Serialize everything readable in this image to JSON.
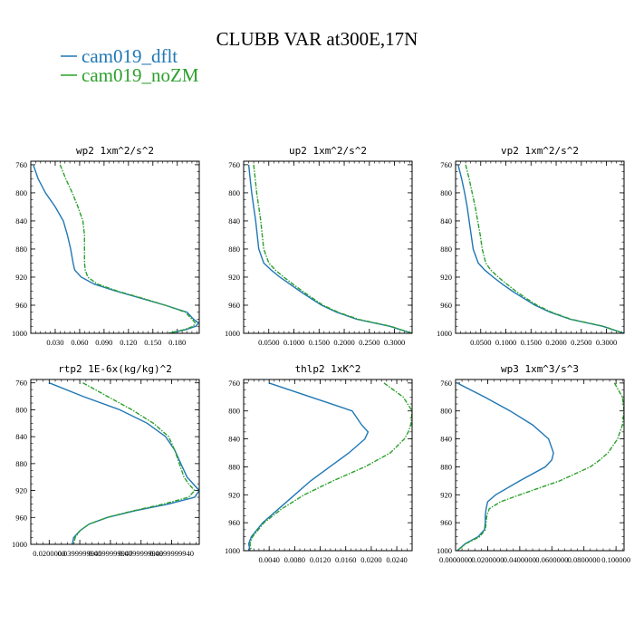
{
  "figure": {
    "title": "CLUBB VAR at300E,17N",
    "colors": {
      "dflt": "#1f77b4",
      "noZM": "#2ca02c"
    }
  },
  "legend": [
    {
      "label": "cam019_dflt",
      "color": "#1f77b4"
    },
    {
      "label": "cam019_noZM",
      "color": "#2ca02c"
    }
  ],
  "chart_data": [
    {
      "type": "line",
      "title": "wp2  1xm^2/s^2",
      "y": [
        760,
        780,
        800,
        820,
        840,
        860,
        880,
        900,
        910,
        920,
        930,
        940,
        950,
        960,
        970,
        980,
        985,
        990,
        995,
        1000
      ],
      "ylim": [
        1000,
        755
      ],
      "yticks": [
        760,
        800,
        840,
        880,
        920,
        960,
        1000
      ],
      "xlim": [
        0.0,
        0.207
      ],
      "xticks": [
        0.03,
        0.06,
        0.09,
        0.12,
        0.15,
        0.18
      ],
      "xticklabels": [
        "0.030",
        "0.060",
        "0.090",
        "0.120",
        "0.150",
        "0.180"
      ],
      "series": [
        {
          "name": "cam019_dflt",
          "values": [
            0.003,
            0.009,
            0.018,
            0.03,
            0.04,
            0.045,
            0.049,
            0.052,
            0.054,
            0.062,
            0.078,
            0.105,
            0.135,
            0.165,
            0.192,
            0.2,
            0.206,
            0.203,
            0.19,
            0.17
          ]
        },
        {
          "name": "cam019_noZM",
          "values": [
            0.036,
            0.043,
            0.051,
            0.058,
            0.064,
            0.066,
            0.066,
            0.066,
            0.067,
            0.07,
            0.082,
            0.107,
            0.137,
            0.165,
            0.19,
            0.198,
            0.202,
            0.2,
            0.188,
            0.168
          ]
        }
      ]
    },
    {
      "type": "line",
      "title": "up2  1xm^2/s^2",
      "y": [
        760,
        780,
        800,
        820,
        840,
        860,
        880,
        900,
        910,
        920,
        930,
        940,
        950,
        960,
        970,
        980,
        990,
        1000
      ],
      "ylim": [
        1000,
        755
      ],
      "yticks": [
        760,
        800,
        840,
        880,
        920,
        960,
        1000
      ],
      "xlim": [
        0.0,
        0.335
      ],
      "xticks": [
        0.05,
        0.1,
        0.15,
        0.2,
        0.25,
        0.3
      ],
      "xticklabels": [
        "0.0500",
        "0.1000",
        "0.1500",
        "0.2000",
        "0.2500",
        "0.3000"
      ],
      "series": [
        {
          "name": "cam019_dflt",
          "values": [
            0.01,
            0.013,
            0.016,
            0.02,
            0.024,
            0.027,
            0.03,
            0.04,
            0.055,
            0.072,
            0.092,
            0.112,
            0.133,
            0.155,
            0.185,
            0.225,
            0.29,
            0.335
          ]
        },
        {
          "name": "cam019_noZM",
          "values": [
            0.02,
            0.023,
            0.026,
            0.03,
            0.034,
            0.037,
            0.04,
            0.05,
            0.063,
            0.08,
            0.098,
            0.117,
            0.137,
            0.158,
            0.188,
            0.228,
            0.292,
            0.335
          ]
        }
      ]
    },
    {
      "type": "line",
      "title": "vp2  1xm^2/s^2",
      "y": [
        760,
        780,
        800,
        820,
        840,
        860,
        880,
        900,
        910,
        920,
        930,
        940,
        950,
        960,
        970,
        980,
        990,
        1000
      ],
      "ylim": [
        1000,
        755
      ],
      "yticks": [
        760,
        800,
        840,
        880,
        920,
        960,
        1000
      ],
      "xlim": [
        0.0,
        0.335
      ],
      "xticks": [
        0.05,
        0.1,
        0.15,
        0.2,
        0.25,
        0.3
      ],
      "xticklabels": [
        "0.0500",
        "0.1000",
        "0.1500",
        "0.2000",
        "0.2500",
        "0.3000"
      ],
      "series": [
        {
          "name": "cam019_dflt",
          "values": [
            0.005,
            0.012,
            0.018,
            0.023,
            0.027,
            0.031,
            0.035,
            0.045,
            0.058,
            0.075,
            0.093,
            0.113,
            0.135,
            0.158,
            0.188,
            0.228,
            0.292,
            0.335
          ]
        },
        {
          "name": "cam019_noZM",
          "values": [
            0.02,
            0.027,
            0.033,
            0.039,
            0.044,
            0.049,
            0.053,
            0.06,
            0.07,
            0.085,
            0.102,
            0.12,
            0.14,
            0.162,
            0.191,
            0.23,
            0.294,
            0.335
          ]
        }
      ]
    },
    {
      "type": "line",
      "title": "rtp2  1E-6x(kg/kg)^2",
      "y": [
        760,
        780,
        800,
        820,
        840,
        860,
        880,
        900,
        910,
        920,
        930,
        940,
        950,
        960,
        970,
        980,
        990,
        1000
      ],
      "ylim": [
        1000,
        755
      ],
      "yticks": [
        760,
        800,
        840,
        880,
        920,
        960,
        1000
      ],
      "xlim": [
        0.008,
        0.118
      ],
      "xticks": [
        0.02,
        0.04,
        0.06,
        0.08,
        0.1
      ],
      "xticklabels": [
        "0.0200000",
        "0.0399999940",
        "0.0599999940",
        "0.0799999940",
        "0.0999999940"
      ],
      "series": [
        {
          "name": "cam019_dflt",
          "values": [
            0.02,
            0.042,
            0.066,
            0.084,
            0.096,
            0.102,
            0.106,
            0.11,
            0.114,
            0.118,
            0.115,
            0.098,
            0.076,
            0.058,
            0.046,
            0.04,
            0.036,
            0.035
          ]
        },
        {
          "name": "cam019_noZM",
          "values": [
            0.042,
            0.058,
            0.074,
            0.088,
            0.098,
            0.102,
            0.105,
            0.108,
            0.111,
            0.115,
            0.111,
            0.095,
            0.075,
            0.058,
            0.046,
            0.04,
            0.037,
            0.036
          ]
        }
      ]
    },
    {
      "type": "line",
      "title": "thlp2  1xK^2",
      "y": [
        760,
        780,
        800,
        820,
        830,
        840,
        860,
        880,
        900,
        920,
        940,
        960,
        980,
        990,
        1000
      ],
      "ylim": [
        1000,
        755
      ],
      "yticks": [
        760,
        800,
        840,
        880,
        920,
        960,
        1000
      ],
      "xlim": [
        0.0,
        0.0264
      ],
      "xticks": [
        0.004,
        0.008,
        0.012,
        0.016,
        0.02,
        0.024
      ],
      "xticklabels": [
        "0.0040",
        "0.0080",
        "0.0120",
        "0.0160",
        "0.0200",
        "0.0240"
      ],
      "series": [
        {
          "name": "cam019_dflt",
          "values": [
            0.004,
            0.0105,
            0.017,
            0.0185,
            0.0195,
            0.019,
            0.0165,
            0.0135,
            0.0105,
            0.008,
            0.0055,
            0.003,
            0.0012,
            0.0008,
            0.001
          ]
        },
        {
          "name": "cam019_noZM",
          "values": [
            0.022,
            0.025,
            0.0264,
            0.0262,
            0.0258,
            0.0252,
            0.023,
            0.019,
            0.014,
            0.0095,
            0.006,
            0.0032,
            0.0014,
            0.001,
            0.0012
          ]
        }
      ]
    },
    {
      "type": "line",
      "title": "wp3  1xm^3/s^3",
      "y": [
        760,
        780,
        800,
        820,
        840,
        860,
        870,
        880,
        900,
        920,
        930,
        940,
        950,
        960,
        970,
        980,
        990,
        1000
      ],
      "ylim": [
        1000,
        755
      ],
      "yticks": [
        760,
        800,
        840,
        880,
        920,
        960,
        1000
      ],
      "xlim": [
        0.0,
        0.105
      ],
      "xticks": [
        0.0,
        0.02,
        0.04,
        0.06,
        0.08,
        0.1
      ],
      "xticklabels": [
        "0.0000000",
        "0.0200000",
        "0.0400000",
        "0.0600000",
        "0.0800000",
        "0.100000"
      ],
      "series": [
        {
          "name": "cam019_dflt",
          "values": [
            0.001,
            0.018,
            0.034,
            0.048,
            0.058,
            0.061,
            0.06,
            0.056,
            0.04,
            0.025,
            0.02,
            0.019,
            0.0185,
            0.0185,
            0.018,
            0.014,
            0.006,
            0.001
          ]
        },
        {
          "name": "cam019_noZM",
          "values": [
            0.099,
            0.104,
            0.105,
            0.104,
            0.101,
            0.095,
            0.09,
            0.084,
            0.065,
            0.04,
            0.028,
            0.021,
            0.0195,
            0.019,
            0.0185,
            0.015,
            0.0065,
            0.001
          ]
        }
      ]
    }
  ]
}
